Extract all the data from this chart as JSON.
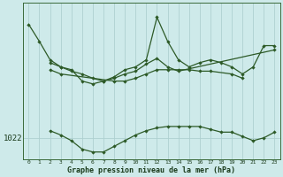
{
  "title": "Graphe pression niveau de la mer (hPa)",
  "background_color": "#ceeaea",
  "grid_color": "#aed0d0",
  "line_color": "#2d5a27",
  "y_label_val": 1022,
  "x_ticks": [
    0,
    1,
    2,
    3,
    4,
    5,
    6,
    7,
    8,
    9,
    10,
    11,
    12,
    13,
    14,
    15,
    16,
    17,
    18,
    19,
    20,
    21,
    22,
    23
  ],
  "ylim": [
    1020.5,
    1031.5
  ],
  "xlim": [
    -0.5,
    23.5
  ],
  "line1_x": [
    0,
    1,
    2,
    3,
    4,
    5,
    6,
    7,
    8,
    9,
    10,
    11,
    12,
    13,
    14,
    23
  ],
  "line1_y": [
    1030.0,
    1028.8,
    1027.5,
    1027.0,
    1026.7,
    1026.5,
    1026.2,
    1026.0,
    1026.2,
    1026.5,
    1026.7,
    1027.2,
    1027.6,
    1027.0,
    1026.7,
    1028.2
  ],
  "line2_x": [
    2,
    3,
    4,
    5,
    6,
    7,
    8,
    9,
    10,
    11,
    12,
    13,
    14,
    15,
    16,
    17,
    18,
    19,
    20,
    21,
    22,
    23
  ],
  "line2_y": [
    1027.3,
    1027.0,
    1026.8,
    1026.0,
    1025.8,
    1026.0,
    1026.3,
    1026.8,
    1027.0,
    1027.5,
    1030.5,
    1028.8,
    1027.5,
    1027.0,
    1027.3,
    1027.5,
    1027.3,
    1027.0,
    1026.5,
    1027.0,
    1028.5,
    1028.5
  ],
  "line3_x": [
    2,
    3,
    8,
    9,
    10,
    11,
    12,
    13,
    14,
    15,
    16,
    17,
    19,
    20
  ],
  "line3_y": [
    1026.8,
    1026.5,
    1026.0,
    1026.0,
    1026.2,
    1026.5,
    1026.8,
    1026.8,
    1026.8,
    1026.8,
    1026.7,
    1026.7,
    1026.5,
    1026.2
  ],
  "line4_x": [
    2,
    3,
    4,
    5,
    6,
    7,
    8,
    9,
    10,
    11,
    12,
    13,
    14,
    15,
    16,
    17,
    18,
    19,
    20,
    21,
    22,
    23
  ],
  "line4_y": [
    1022.5,
    1022.2,
    1021.8,
    1021.2,
    1021.0,
    1021.0,
    1021.4,
    1021.8,
    1022.2,
    1022.5,
    1022.7,
    1022.8,
    1022.8,
    1022.8,
    1022.8,
    1022.6,
    1022.4,
    1022.4,
    1022.1,
    1021.8,
    1022.0,
    1022.4
  ]
}
